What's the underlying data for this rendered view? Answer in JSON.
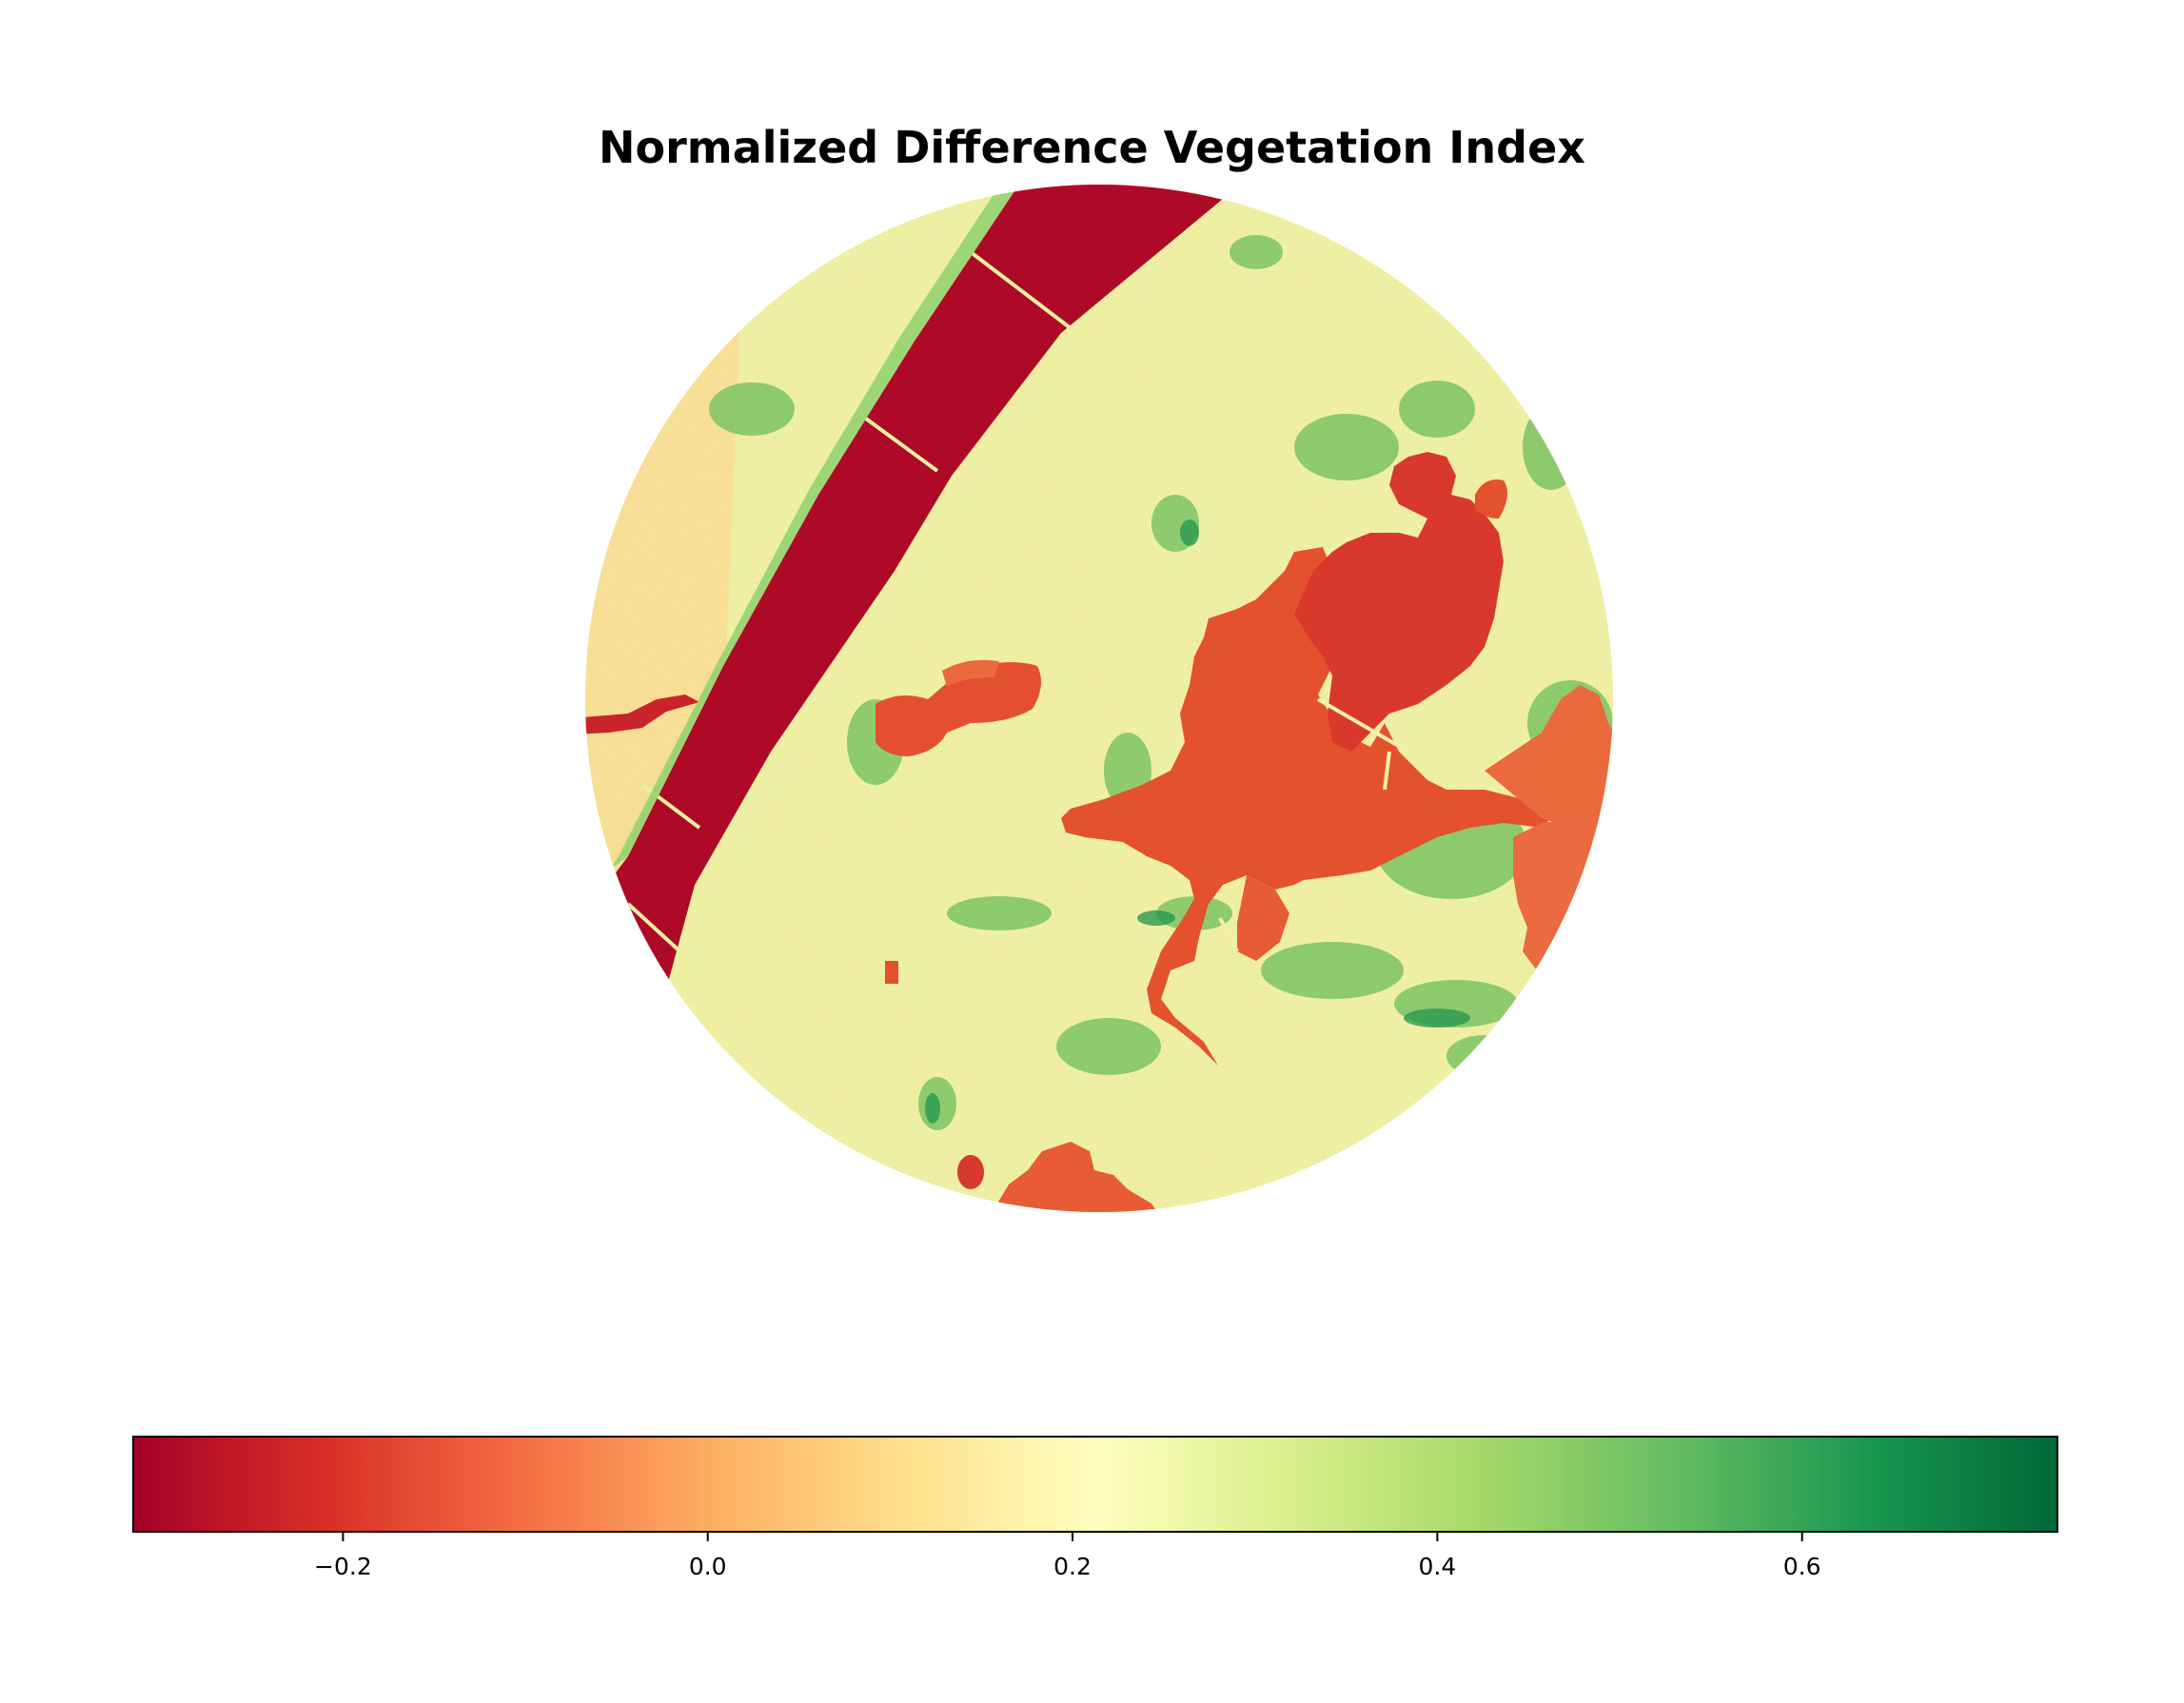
{
  "chart_data": {
    "type": "heatmap",
    "title": "Normalized Difference Vegetation Index",
    "colormap": "RdYlGn",
    "colorbar": {
      "orientation": "horizontal",
      "vmin": -0.315,
      "vmax": 0.74,
      "ticks": [
        -0.2,
        0.0,
        0.2,
        0.4,
        0.6
      ],
      "tick_labels": [
        "−0.2",
        "0.0",
        "0.2",
        "0.4",
        "0.6"
      ],
      "colors": [
        "#a50026",
        "#d73027",
        "#f46d43",
        "#fdae61",
        "#fee08b",
        "#ffffbf",
        "#d9ef8b",
        "#a6d96a",
        "#66bd63",
        "#1a9850",
        "#006837"
      ]
    },
    "image": {
      "shape": "circle",
      "grid": "off",
      "axes": "off",
      "dominant_value": 0.15
    }
  }
}
